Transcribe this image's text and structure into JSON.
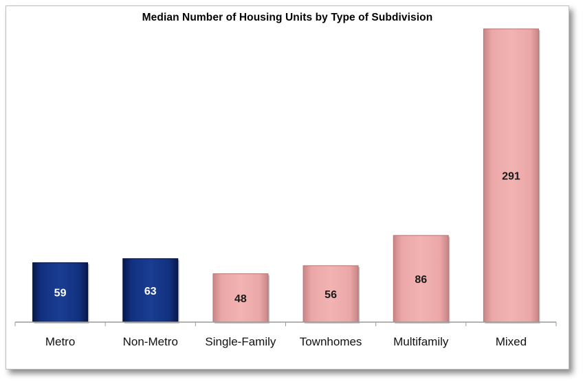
{
  "chart_data": {
    "type": "bar",
    "title": "Median Number of Housing Units by Type of Subdivision",
    "categories": [
      "Metro",
      "Non-Metro",
      "Single-Family",
      "Townhomes",
      "Multifamily",
      "Mixed"
    ],
    "values": [
      59,
      63,
      48,
      56,
      86,
      291
    ],
    "ylim": [
      0,
      291
    ],
    "grid": false,
    "colors": {
      "location_bar": "#0e2a74",
      "location_label": "#ffffff",
      "type_bar": "#eeaaaa",
      "type_label": "#1a1a1a",
      "axis": "#9a9a9a"
    },
    "bar_colors": [
      "#0e2a74",
      "#0e2a74",
      "#eeaaaa",
      "#eeaaaa",
      "#eeaaaa",
      "#eeaaaa"
    ],
    "label_colors": [
      "#ffffff",
      "#ffffff",
      "#1a1a1a",
      "#1a1a1a",
      "#1a1a1a",
      "#1a1a1a"
    ]
  }
}
